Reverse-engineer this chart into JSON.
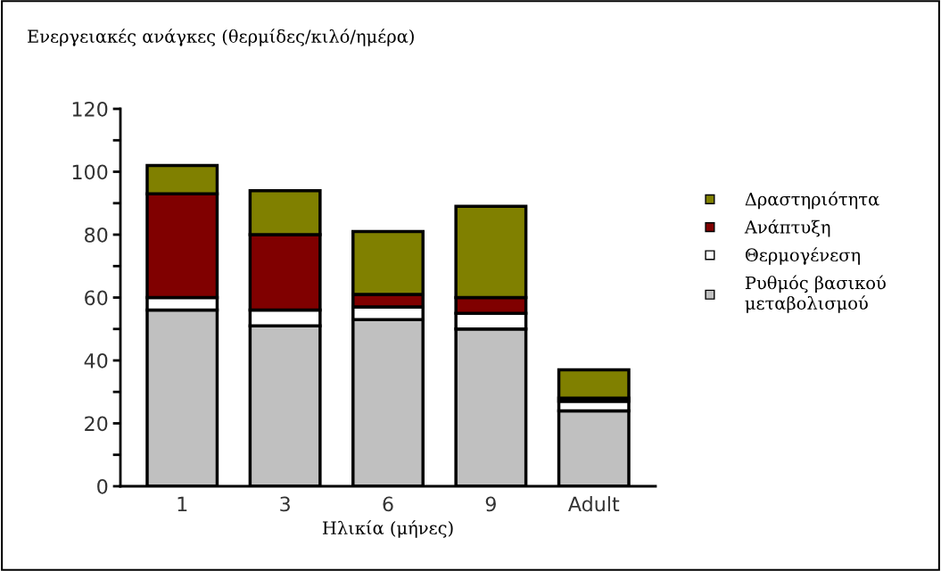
{
  "chart_data": {
    "type": "bar",
    "title": "Ενεργειακές ανάγκες (θερμίδες/κιλό/ημέρα)",
    "xlabel": "Ηλικία (μήνες)",
    "categories": [
      "1",
      "3",
      "6",
      "9",
      "Adult"
    ],
    "stacked": true,
    "series": [
      {
        "name": "Ρυθμός βασικού μεταβολισμού",
        "color": "#c0c0c0",
        "values": [
          56,
          51,
          53,
          50,
          24
        ]
      },
      {
        "name": "Θερμογένεση",
        "color": "#ffffff",
        "values": [
          4,
          5,
          4,
          5,
          3
        ]
      },
      {
        "name": "Ανάπτυξη",
        "color": "#800000",
        "values": [
          33,
          24,
          4,
          5,
          1
        ]
      },
      {
        "name": "Δραστηριότητα",
        "color": "#808000",
        "values": [
          9,
          14,
          20,
          29,
          9
        ]
      }
    ],
    "ylim": [
      0,
      120
    ],
    "yticks": [
      0,
      20,
      40,
      60,
      80,
      100,
      120
    ],
    "grid": false,
    "legend": "right",
    "marker": "square"
  }
}
